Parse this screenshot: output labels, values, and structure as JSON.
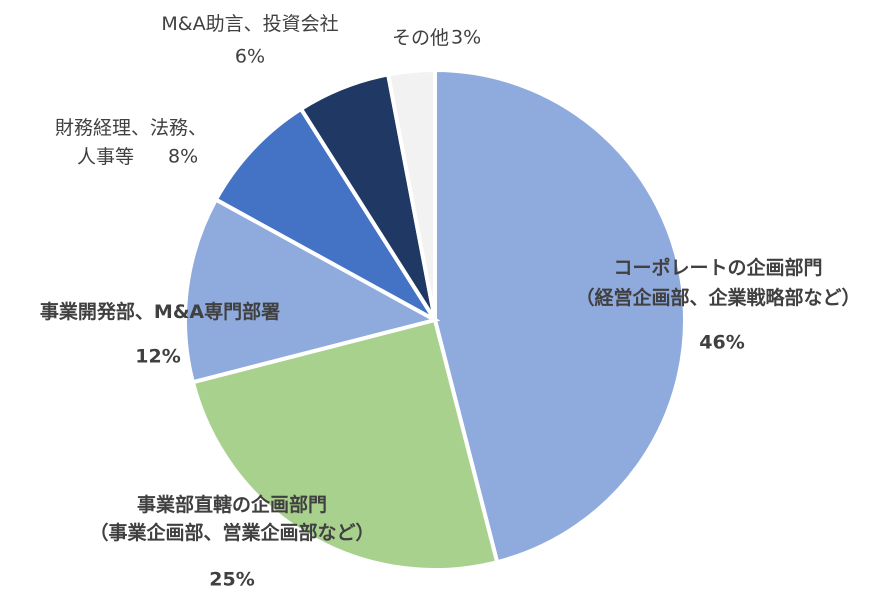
{
  "chart_data": {
    "type": "pie",
    "categories": [
      "コーポレートの企画部門\n（経営企画部、企業戦略部など）",
      "事業部直轄の企画部門\n（事業企画部、営業企画部など）",
      "事業開発部、M&A専門部署",
      "財務経理、法務、\n人事等",
      "M&A助言、投資会社",
      "その他"
    ],
    "values": [
      46,
      25,
      12,
      8,
      6,
      3
    ],
    "value_labels": [
      "46%",
      "25%",
      "12%",
      "8%",
      "6%",
      "3%"
    ],
    "colors": [
      "#8faadc",
      "#a9d18e",
      "#8faadc",
      "#4472c4",
      "#203864",
      "#f2f2f2"
    ]
  }
}
